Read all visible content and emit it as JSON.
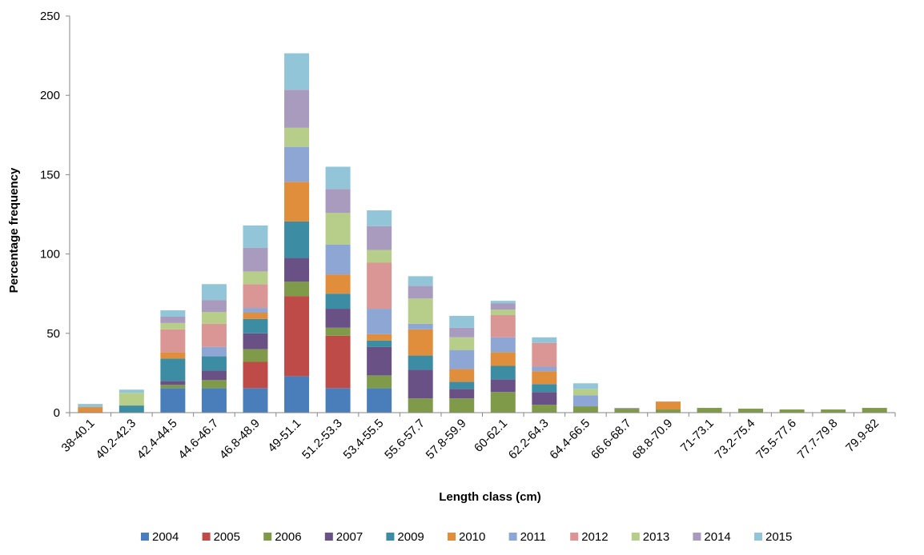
{
  "chart_data": {
    "type": "bar",
    "stacked": true,
    "title": "",
    "xlabel": "Length class (cm)",
    "ylabel": "Percentage frequency",
    "ylim": [
      0,
      250
    ],
    "yticks": [
      0,
      50,
      100,
      150,
      200,
      250
    ],
    "grid": false,
    "legend_position": "bottom",
    "categories": [
      "38-40.1",
      "40.2-42.3",
      "42.4-44.5",
      "44.6-46.7",
      "46.8-48.9",
      "49-51.1",
      "51.2-53.3",
      "53.4-55.5",
      "55.6-57.7",
      "57.8-59.9",
      "60-62.1",
      "62.2-64.3",
      "64.4-66.5",
      "66.6-68.7",
      "68.8-70.9",
      "71-73.1",
      "73.2-75.4",
      "75.5-77.6",
      "77.7-79.8",
      "79.9-82"
    ],
    "series": [
      {
        "name": "2004",
        "color": "#4a7ebb",
        "values": [
          0,
          0,
          15.5,
          15.5,
          15.5,
          23,
          15.5,
          15.5,
          0,
          0,
          0,
          0,
          0,
          0,
          0,
          0,
          0,
          0,
          0,
          0
        ]
      },
      {
        "name": "2005",
        "color": "#be4b48",
        "values": [
          0,
          0,
          0,
          0,
          16.5,
          50.5,
          33,
          0,
          0,
          0,
          0,
          0,
          0,
          0,
          0,
          0,
          0,
          0,
          0,
          0
        ]
      },
      {
        "name": "2006",
        "color": "#7f9a48",
        "values": [
          0,
          0,
          2,
          5,
          8,
          9,
          5,
          8,
          9,
          9,
          13,
          5,
          4,
          2.5,
          2,
          3,
          2.5,
          2,
          2,
          3
        ]
      },
      {
        "name": "2007",
        "color": "#695185",
        "values": [
          0,
          0,
          2.5,
          6,
          10,
          15,
          12,
          18,
          18,
          6,
          8,
          8,
          0,
          0,
          0,
          0,
          0,
          0,
          0,
          0
        ]
      },
      {
        "name": "2009",
        "color": "#3c8da3",
        "values": [
          0,
          4.5,
          14,
          9,
          9,
          23,
          9.5,
          4,
          9,
          4.5,
          8.5,
          5,
          0,
          0,
          0,
          0,
          0,
          0,
          0,
          0
        ]
      },
      {
        "name": "2010",
        "color": "#e08e3c",
        "values": [
          3.5,
          0,
          4,
          0,
          4,
          25,
          12,
          4,
          16.5,
          8,
          8.5,
          8,
          0,
          0,
          5,
          0,
          0,
          0,
          0,
          0
        ]
      },
      {
        "name": "2011",
        "color": "#8ea6d4",
        "values": [
          0,
          0,
          0,
          6,
          3,
          22,
          19,
          16,
          3.5,
          12,
          9.5,
          3,
          7,
          0,
          0,
          0,
          0,
          0,
          0,
          0
        ]
      },
      {
        "name": "2012",
        "color": "#d99694",
        "values": [
          0,
          0,
          14.5,
          14.5,
          15,
          0,
          0,
          29,
          0,
          0,
          14,
          15,
          0,
          0,
          0,
          0,
          0,
          0,
          0,
          0
        ]
      },
      {
        "name": "2013",
        "color": "#b7cd8a",
        "values": [
          0,
          8,
          4,
          7.5,
          8,
          12,
          20,
          8,
          16,
          8,
          3.5,
          0,
          4,
          0,
          0,
          0,
          0,
          0,
          0,
          0
        ]
      },
      {
        "name": "2014",
        "color": "#a99bbd",
        "values": [
          0,
          0,
          4,
          7.5,
          15,
          24,
          15,
          15,
          8,
          6,
          4,
          0,
          0,
          0.5,
          0,
          0,
          0,
          0,
          0,
          0
        ]
      },
      {
        "name": "2015",
        "color": "#93c5d8",
        "values": [
          2,
          2,
          4,
          10,
          14,
          23,
          14,
          10,
          6,
          7.5,
          1.5,
          3.5,
          3.5,
          0,
          0,
          0,
          0,
          0,
          0,
          0
        ]
      }
    ]
  }
}
